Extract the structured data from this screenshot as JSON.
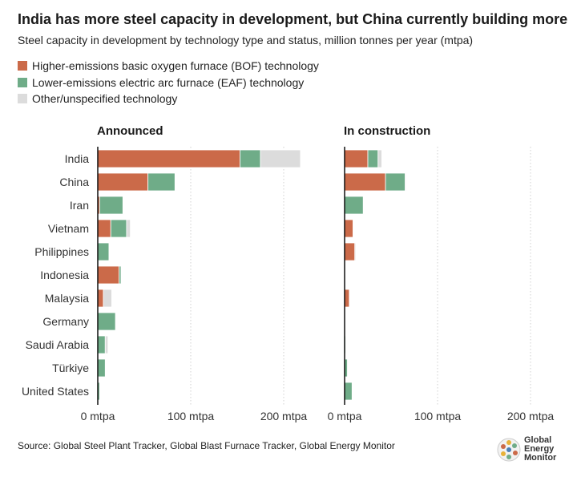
{
  "title": "India has more steel capacity in development, but China currently building more",
  "subtitle": "Steel capacity in development by technology type and status, million tonnes per year (mtpa)",
  "colors": {
    "bof": "#cb6a49",
    "eaf": "#6fac88",
    "other": "#dcdcdc"
  },
  "source": "Source: Global Steel Plant Tracker, Global Blast Furnace Tracker, Global Energy Monitor",
  "logo": {
    "line1": "Global",
    "line2": "Energy",
    "line3": "Monitor"
  },
  "chart_data": {
    "type": "bar",
    "orientation": "horizontal",
    "stacked": true,
    "title": "India has more steel capacity in development, but China currently building more",
    "subtitle": "Steel capacity in development by technology type and status, million tonnes per year (mtpa)",
    "legend": [
      "Higher-emissions basic oxygen furnace (BOF) technology",
      "Lower-emissions electric arc furnace (EAF) technology",
      "Other/unspecified technology"
    ],
    "legend_position": "top-left",
    "categories": [
      "India",
      "China",
      "Iran",
      "Vietnam",
      "Philippines",
      "Indonesia",
      "Malaysia",
      "Germany",
      "Saudi Arabia",
      "Türkiye",
      "United States"
    ],
    "xlim": [
      0,
      200
    ],
    "xticks": [
      0,
      100,
      200
    ],
    "xtick_labels": [
      "0 mtpa",
      "100 mtpa",
      "200 mtpa"
    ],
    "panels": [
      {
        "title": "Announced",
        "series": [
          {
            "name": "BOF",
            "values": [
              153,
              54,
              2,
              14,
              0,
              23,
              6,
              0,
              0,
              0,
              0
            ]
          },
          {
            "name": "EAF",
            "values": [
              22,
              29,
              25,
              17,
              12,
              2,
              0,
              19,
              8,
              8,
              2
            ]
          },
          {
            "name": "Other",
            "values": [
              43,
              0,
              0,
              4,
              0,
              0,
              9,
              0,
              3,
              0,
              0
            ]
          }
        ]
      },
      {
        "title": "In construction",
        "series": [
          {
            "name": "BOF",
            "values": [
              25,
              44,
              0,
              9,
              11,
              0,
              5,
              0,
              0,
              0,
              0
            ]
          },
          {
            "name": "EAF",
            "values": [
              11,
              21,
              20,
              0,
              0,
              0,
              0,
              0,
              1,
              3,
              8
            ]
          },
          {
            "name": "Other",
            "values": [
              4,
              1,
              0,
              0,
              1,
              0,
              0,
              0,
              0,
              0,
              0
            ]
          }
        ]
      }
    ]
  }
}
